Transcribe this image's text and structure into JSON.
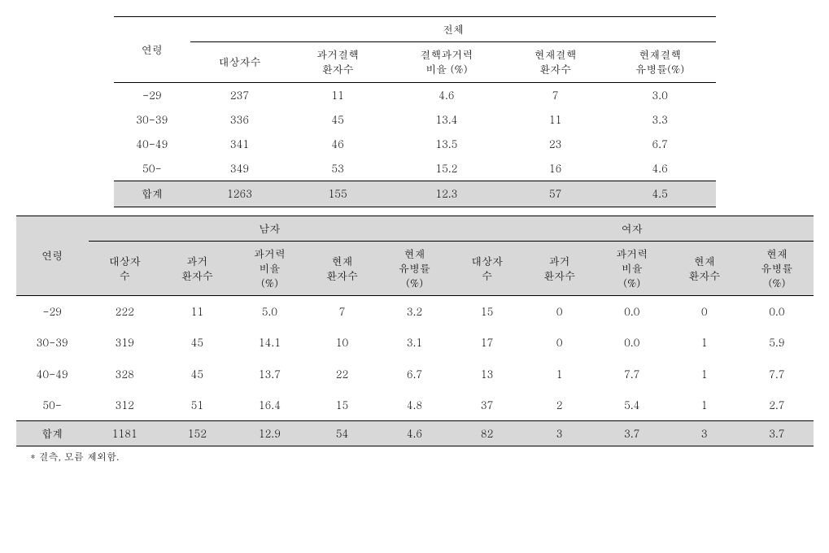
{
  "table1": {
    "age_header": "연령",
    "group_header": "전체",
    "columns": [
      "대상자수",
      "과거결핵\n환자수",
      "결핵과거력\n비율 (%)",
      "현재결핵\n환자수",
      "현재결핵\n유병률(%)"
    ],
    "rows": [
      {
        "age": "-29",
        "c1": "237",
        "c2": "11",
        "c3": "4.6",
        "c4": "7",
        "c5": "3.0"
      },
      {
        "age": "30-39",
        "c1": "336",
        "c2": "45",
        "c3": "13.4",
        "c4": "11",
        "c5": "3.3"
      },
      {
        "age": "40-49",
        "c1": "341",
        "c2": "46",
        "c3": "13.5",
        "c4": "23",
        "c5": "6.7"
      },
      {
        "age": "50-",
        "c1": "349",
        "c2": "53",
        "c3": "15.2",
        "c4": "16",
        "c5": "4.6"
      }
    ],
    "total": {
      "age": "합계",
      "c1": "1263",
      "c2": "155",
      "c3": "12.3",
      "c4": "57",
      "c5": "4.5"
    }
  },
  "table2": {
    "age_header": "연령",
    "male_header": "남자",
    "female_header": "여자",
    "sub_columns_m": [
      "대상자\n수",
      "과거\n환자수",
      "과거력\n비율\n(%)",
      "현재\n환자수",
      "현재\n유병률\n(%)"
    ],
    "sub_columns_f": [
      "대상자\n수",
      "과거\n환자수",
      "과거력\n비율\n(%)",
      "현재\n환자수",
      "현재\n유병률\n(%)"
    ],
    "rows": [
      {
        "age": "-29",
        "m1": "222",
        "m2": "11",
        "m3": "5.0",
        "m4": "7",
        "m5": "3.2",
        "f1": "15",
        "f2": "0",
        "f3": "0.0",
        "f4": "0",
        "f5": "0.0"
      },
      {
        "age": "30-39",
        "m1": "319",
        "m2": "45",
        "m3": "14.1",
        "m4": "10",
        "m5": "3.1",
        "f1": "17",
        "f2": "0",
        "f3": "0.0",
        "f4": "1",
        "f5": "5.9"
      },
      {
        "age": "40-49",
        "m1": "328",
        "m2": "45",
        "m3": "13.7",
        "m4": "22",
        "m5": "6.7",
        "f1": "13",
        "f2": "1",
        "f3": "7.7",
        "f4": "1",
        "f5": "7.7"
      },
      {
        "age": "50-",
        "m1": "312",
        "m2": "51",
        "m3": "16.4",
        "m4": "15",
        "m5": "4.8",
        "f1": "37",
        "f2": "2",
        "f3": "5.4",
        "f4": "1",
        "f5": "2.7"
      }
    ],
    "total": {
      "age": "합계",
      "m1": "1181",
      "m2": "152",
      "m3": "12.9",
      "m4": "54",
      "m5": "4.6",
      "f1": "82",
      "f2": "3",
      "f3": "3.7",
      "f4": "3",
      "f5": "3.7"
    }
  },
  "footnote": "* 결측, 모름 제외함."
}
